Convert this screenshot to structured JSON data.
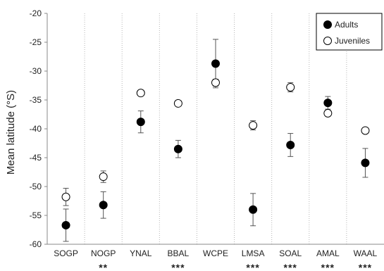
{
  "chart_data": {
    "type": "scatter",
    "title": "",
    "xlabel": "",
    "ylabel": "Mean latitude (°S)",
    "ylim": [
      -60,
      -20
    ],
    "yticks": [
      -20,
      -25,
      -30,
      -35,
      -40,
      -45,
      -50,
      -55,
      -60
    ],
    "grid": "vertical dotted separators between categories",
    "legend_position": "top-right",
    "categories": [
      "SOGP",
      "NOGP",
      "YNAL",
      "BBAL",
      "WCPE",
      "LMSA",
      "SOAL",
      "AMAL",
      "WAAL"
    ],
    "significance": [
      "",
      "**",
      "",
      "***",
      "",
      "***",
      "***",
      "***",
      "***"
    ],
    "series": [
      {
        "name": "Adults",
        "marker": "filled-circle",
        "color": "#000000",
        "values": [
          -56.7,
          -53.2,
          -38.8,
          -43.5,
          -28.7,
          -54.0,
          -42.8,
          -35.5,
          -45.9
        ],
        "error": [
          2.8,
          2.3,
          1.9,
          1.5,
          4.2,
          2.8,
          2.0,
          1.1,
          2.5
        ]
      },
      {
        "name": "Juveniles",
        "marker": "open-circle",
        "color": "#000000",
        "values": [
          -51.8,
          -48.3,
          -33.8,
          -35.6,
          -32.0,
          -39.4,
          -32.8,
          -37.3,
          -40.3
        ],
        "error": [
          1.5,
          1.0,
          0.4,
          0.3,
          0.6,
          0.8,
          0.8,
          0.4,
          0.5
        ]
      }
    ]
  }
}
